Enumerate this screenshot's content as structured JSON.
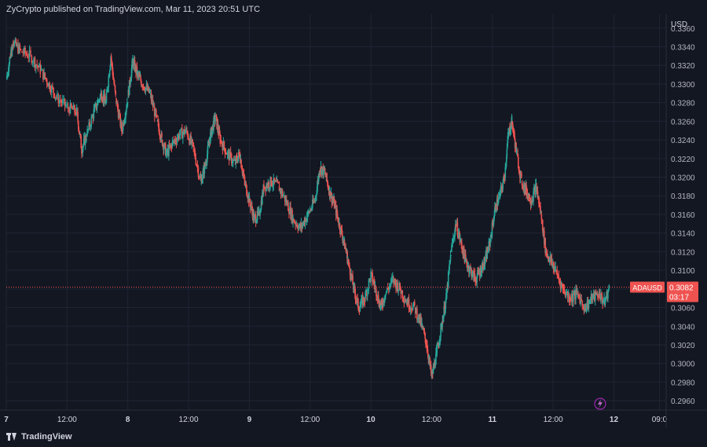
{
  "header": {
    "text": "ZyCrypto published on TradingView.com, Mar 11, 2023 20:51 UTC"
  },
  "footer": {
    "logo_text": "TradingView"
  },
  "chart_data": {
    "type": "line",
    "symbol": "ADAUSD",
    "currency_label": "USD",
    "last_price": "0.3082",
    "countdown": "03:17",
    "price_line": 0.3082,
    "ylim": [
      0.295,
      0.3375
    ],
    "y_ticks": [
      0.336,
      0.334,
      0.332,
      0.33,
      0.328,
      0.326,
      0.324,
      0.322,
      0.32,
      0.318,
      0.316,
      0.314,
      0.312,
      0.31,
      0.308,
      0.306,
      0.304,
      0.302,
      0.3,
      0.298,
      0.296
    ],
    "x_ticks": [
      {
        "label": "7",
        "t": 0.0,
        "bold": true
      },
      {
        "label": "12:00",
        "t": 0.5,
        "bold": false
      },
      {
        "label": "8",
        "t": 1.0,
        "bold": true
      },
      {
        "label": "12:00",
        "t": 1.5,
        "bold": false
      },
      {
        "label": "9",
        "t": 2.0,
        "bold": true
      },
      {
        "label": "12:00",
        "t": 2.5,
        "bold": false
      },
      {
        "label": "10",
        "t": 3.0,
        "bold": true
      },
      {
        "label": "12:00",
        "t": 3.5,
        "bold": false
      },
      {
        "label": "11",
        "t": 4.0,
        "bold": true
      },
      {
        "label": "12:00",
        "t": 4.5,
        "bold": false
      },
      {
        "label": "12",
        "t": 5.0,
        "bold": true
      },
      {
        "label": "09:0",
        "t": 5.375,
        "bold": false
      }
    ],
    "xlim": [
      0.0,
      5.43
    ],
    "series": [
      {
        "points": [
          [
            0.0,
            0.3305
          ],
          [
            0.05,
            0.3345
          ],
          [
            0.12,
            0.3335
          ],
          [
            0.2,
            0.333
          ],
          [
            0.28,
            0.3315
          ],
          [
            0.35,
            0.33
          ],
          [
            0.42,
            0.3285
          ],
          [
            0.5,
            0.3275
          ],
          [
            0.58,
            0.327
          ],
          [
            0.62,
            0.323
          ],
          [
            0.66,
            0.3245
          ],
          [
            0.72,
            0.327
          ],
          [
            0.78,
            0.329
          ],
          [
            0.82,
            0.328
          ],
          [
            0.86,
            0.333
          ],
          [
            0.9,
            0.3285
          ],
          [
            0.95,
            0.325
          ],
          [
            1.0,
            0.3285
          ],
          [
            1.04,
            0.3325
          ],
          [
            1.08,
            0.331
          ],
          [
            1.12,
            0.33
          ],
          [
            1.18,
            0.329
          ],
          [
            1.24,
            0.326
          ],
          [
            1.28,
            0.324
          ],
          [
            1.32,
            0.3225
          ],
          [
            1.36,
            0.3235
          ],
          [
            1.42,
            0.3245
          ],
          [
            1.48,
            0.325
          ],
          [
            1.54,
            0.323
          ],
          [
            1.6,
            0.3195
          ],
          [
            1.64,
            0.3215
          ],
          [
            1.68,
            0.3245
          ],
          [
            1.72,
            0.3265
          ],
          [
            1.76,
            0.324
          ],
          [
            1.82,
            0.3225
          ],
          [
            1.88,
            0.3215
          ],
          [
            1.92,
            0.3225
          ],
          [
            1.96,
            0.3195
          ],
          [
            2.0,
            0.3175
          ],
          [
            2.04,
            0.3155
          ],
          [
            2.08,
            0.316
          ],
          [
            2.12,
            0.319
          ],
          [
            2.18,
            0.3195
          ],
          [
            2.24,
            0.319
          ],
          [
            2.3,
            0.3175
          ],
          [
            2.36,
            0.3155
          ],
          [
            2.42,
            0.3145
          ],
          [
            2.48,
            0.316
          ],
          [
            2.54,
            0.3175
          ],
          [
            2.58,
            0.321
          ],
          [
            2.62,
            0.3205
          ],
          [
            2.66,
            0.3185
          ],
          [
            2.7,
            0.317
          ],
          [
            2.74,
            0.315
          ],
          [
            2.78,
            0.313
          ],
          [
            2.82,
            0.3105
          ],
          [
            2.86,
            0.308
          ],
          [
            2.9,
            0.306
          ],
          [
            2.95,
            0.307
          ],
          [
            3.0,
            0.3095
          ],
          [
            3.04,
            0.308
          ],
          [
            3.08,
            0.306
          ],
          [
            3.12,
            0.3075
          ],
          [
            3.18,
            0.309
          ],
          [
            3.24,
            0.308
          ],
          [
            3.3,
            0.3065
          ],
          [
            3.36,
            0.306
          ],
          [
            3.42,
            0.304
          ],
          [
            3.46,
            0.302
          ],
          [
            3.5,
            0.2985
          ],
          [
            3.54,
            0.301
          ],
          [
            3.58,
            0.304
          ],
          [
            3.62,
            0.307
          ],
          [
            3.66,
            0.312
          ],
          [
            3.7,
            0.315
          ],
          [
            3.74,
            0.313
          ],
          [
            3.78,
            0.311
          ],
          [
            3.82,
            0.31
          ],
          [
            3.86,
            0.309
          ],
          [
            3.9,
            0.31
          ],
          [
            3.94,
            0.311
          ],
          [
            3.98,
            0.313
          ],
          [
            4.02,
            0.3165
          ],
          [
            4.06,
            0.318
          ],
          [
            4.1,
            0.32
          ],
          [
            4.13,
            0.3245
          ],
          [
            4.16,
            0.326
          ],
          [
            4.2,
            0.3225
          ],
          [
            4.24,
            0.3195
          ],
          [
            4.28,
            0.3185
          ],
          [
            4.32,
            0.3175
          ],
          [
            4.36,
            0.319
          ],
          [
            4.4,
            0.316
          ],
          [
            4.44,
            0.312
          ],
          [
            4.48,
            0.311
          ],
          [
            4.52,
            0.31
          ],
          [
            4.58,
            0.308
          ],
          [
            4.64,
            0.307
          ],
          [
            4.7,
            0.3075
          ],
          [
            4.76,
            0.306
          ],
          [
            4.82,
            0.307
          ],
          [
            4.88,
            0.3075
          ],
          [
            4.92,
            0.3065
          ],
          [
            4.96,
            0.308
          ]
        ]
      }
    ]
  }
}
